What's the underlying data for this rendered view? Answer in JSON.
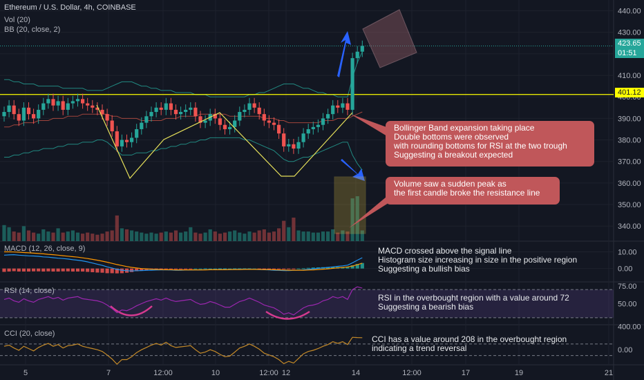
{
  "header": {
    "title": "Ethereum / U.S. Dollar, 4h, COINBASE",
    "vol_legend": "Vol (20)",
    "bb_legend": "BB (20, close, 2)",
    "macd_legend": "MACD (12, 26, close, 9)",
    "rsi_legend": "RSI (14, close)",
    "cci_legend": "CCI (20, close)"
  },
  "price_tags": {
    "current_price": "423.65",
    "countdown": "01:51",
    "resistance": "401.12"
  },
  "annotations": {
    "bb_note": [
      "Bollinger Band expansion taking place",
      "Double bottoms were observed",
      "with rounding bottoms for RSI at the two trough",
      "Suggesting a breakout expected"
    ],
    "vol_note": [
      "Volume saw a sudden peak as",
      "the first candle broke the resistance line"
    ],
    "macd_note": [
      "MACD crossed above the signal line",
      "Histogram size increasing in size in the positive region",
      "Suggesting a bullish bias"
    ],
    "rsi_note": [
      "RSI in the overbought region with a value around 72",
      "Suggesting a bearish bias"
    ],
    "cci_note": [
      "CCI has a value around 208 in the overbought region",
      "indicating a trend reversal"
    ]
  },
  "colors": {
    "background": "#131722",
    "up": "#26a69a",
    "down": "#ef5350",
    "resistance": "#ffff00",
    "bb_band": "#26a69a",
    "bb_basis": "#e05a47",
    "pattern": "#e6e05a",
    "arrow": "#2962ff",
    "macd": "#2196f3",
    "signal": "#ff9800",
    "rsi": "#9c27b0",
    "cci": "#c58a28",
    "note_bg": "#c0575a"
  },
  "chart_data": [
    {
      "type": "candlestick",
      "title": "Ethereum / U.S. Dollar, 4h, COINBASE",
      "x_ticks": [
        "5",
        "7",
        "12:00",
        "10",
        "12:00",
        "12",
        "14",
        "12:00",
        "17",
        "19",
        "21"
      ],
      "y_ticks": [
        "440.00",
        "430.00",
        "420.00",
        "410.00",
        "400.00",
        "390.00",
        "380.00",
        "370.00",
        "360.00",
        "350.00",
        "340.00"
      ],
      "ylim": [
        333,
        445
      ],
      "resistance": 401.12,
      "last_price": 423.65,
      "close": [
        393,
        396,
        392,
        389,
        395,
        392,
        390,
        394,
        397,
        399,
        396,
        398,
        394,
        397,
        398,
        399,
        397,
        396,
        395,
        394,
        392,
        389,
        384,
        377,
        380,
        379,
        381,
        385,
        388,
        391,
        393,
        395,
        394,
        397,
        394,
        392,
        393,
        394,
        395,
        391,
        388,
        389,
        392,
        390,
        387,
        385,
        386,
        389,
        393,
        394,
        397,
        395,
        392,
        389,
        388,
        387,
        383,
        377,
        378,
        376,
        379,
        383,
        385,
        386,
        387,
        390,
        392,
        396,
        395,
        397,
        394,
        418,
        421,
        423.65
      ],
      "volume": [
        15,
        13,
        9,
        8,
        14,
        10,
        8,
        7,
        11,
        9,
        8,
        12,
        8,
        9,
        10,
        8,
        7,
        8,
        7,
        6,
        7,
        9,
        10,
        24,
        12,
        11,
        10,
        9,
        8,
        7,
        8,
        7,
        8,
        9,
        8,
        10,
        8,
        9,
        13,
        8,
        7,
        8,
        11,
        9,
        7,
        8,
        9,
        10,
        8,
        7,
        9,
        8,
        10,
        11,
        8,
        9,
        12,
        19,
        13,
        22,
        10,
        9,
        9,
        8,
        8,
        9,
        9,
        11,
        8,
        10,
        9,
        40,
        42,
        10
      ],
      "bb_upper": [
        408,
        408,
        407,
        407,
        406,
        406,
        406,
        405,
        405,
        405,
        405,
        405,
        404,
        404,
        404,
        404,
        404,
        403,
        403,
        403,
        403,
        404,
        405,
        406,
        407,
        407,
        407,
        406,
        405,
        405,
        404,
        404,
        403,
        403,
        403,
        402,
        402,
        402,
        402,
        401,
        401,
        401,
        400,
        400,
        400,
        400,
        400,
        400,
        400,
        400,
        401,
        401,
        402,
        402,
        403,
        404,
        405,
        406,
        406,
        406,
        405,
        404,
        404,
        403,
        402,
        402,
        401,
        401,
        400,
        400,
        400,
        409,
        416,
        421
      ],
      "bb_basis": [
        386,
        386,
        387,
        387,
        388,
        388,
        388,
        389,
        389,
        389,
        390,
        390,
        390,
        391,
        391,
        391,
        392,
        392,
        392,
        392,
        392,
        392,
        391,
        391,
        390,
        390,
        390,
        390,
        389,
        389,
        389,
        389,
        389,
        390,
        390,
        390,
        391,
        391,
        391,
        391,
        392,
        392,
        392,
        392,
        392,
        392,
        391,
        391,
        391,
        391,
        391,
        391,
        391,
        390,
        390,
        390,
        389,
        389,
        388,
        388,
        388,
        388,
        388,
        388,
        388,
        389,
        389,
        389,
        390,
        390,
        390,
        391,
        392,
        393
      ],
      "bb_lower": [
        372,
        372,
        373,
        373,
        374,
        374,
        375,
        375,
        376,
        376,
        376,
        377,
        377,
        378,
        378,
        378,
        379,
        379,
        379,
        380,
        380,
        379,
        377,
        375,
        373,
        373,
        373,
        374,
        374,
        374,
        375,
        375,
        376,
        376,
        377,
        377,
        378,
        378,
        379,
        379,
        380,
        380,
        381,
        381,
        381,
        381,
        381,
        381,
        381,
        380,
        380,
        379,
        378,
        377,
        376,
        375,
        373,
        371,
        370,
        370,
        371,
        372,
        372,
        373,
        374,
        375,
        376,
        377,
        378,
        379,
        379,
        373,
        369,
        366
      ]
    },
    {
      "type": "line",
      "title": "MACD (12, 26, close, 9)",
      "y_ticks": [
        "10.00",
        "0.00"
      ],
      "ylim": [
        -8,
        16
      ],
      "series": [
        {
          "values": [
            8,
            8.2,
            8.3,
            8.0,
            7.8,
            7.6,
            7.5,
            7.3,
            7.0,
            6.8,
            6.5,
            6.2,
            6.0,
            5.7,
            5.3,
            5.0,
            4.6,
            4.0,
            3.3,
            2.6,
            1.9,
            1.0,
            0.3,
            -0.5,
            -1.0,
            -1.3,
            -1.4,
            -1.3,
            -1.2,
            -1.1,
            -1.0,
            -0.9,
            -0.8,
            -0.8,
            -0.9,
            -1.0,
            -1.0,
            -0.9,
            -0.9,
            -0.8,
            -0.8,
            -0.7,
            -0.7,
            -0.7,
            -0.6,
            -0.6,
            -0.6,
            -0.5,
            -0.5,
            -0.4,
            -0.4,
            -0.5,
            -0.6,
            -0.7,
            -0.8,
            -1.0,
            -1.1,
            -1.2,
            -1.2,
            -1.1,
            -1.0,
            -0.8,
            -0.5,
            -0.2,
            0.1,
            0.4,
            0.7,
            1.0,
            1.3,
            1.6,
            2.0,
            3.4,
            5.0,
            6.5
          ]
        },
        {
          "values": [
            10,
            10,
            9.9,
            9.8,
            9.6,
            9.4,
            9.2,
            9.0,
            8.8,
            8.5,
            8.3,
            8.0,
            7.7,
            7.4,
            7.1,
            6.8,
            6.4,
            6.0,
            5.5,
            5.0,
            4.4,
            3.8,
            3.1,
            2.4,
            1.8,
            1.2,
            0.7,
            0.3,
            0.0,
            -0.2,
            -0.4,
            -0.5,
            -0.6,
            -0.7,
            -0.7,
            -0.8,
            -0.8,
            -0.8,
            -0.8,
            -0.8,
            -0.8,
            -0.8,
            -0.7,
            -0.7,
            -0.7,
            -0.7,
            -0.6,
            -0.6,
            -0.6,
            -0.5,
            -0.5,
            -0.5,
            -0.5,
            -0.6,
            -0.6,
            -0.7,
            -0.8,
            -0.9,
            -1.0,
            -1.0,
            -1.0,
            -1.0,
            -0.9,
            -0.8,
            -0.6,
            -0.4,
            -0.2,
            0.1,
            0.4,
            0.7,
            1.0,
            1.5,
            2.3,
            3.2
          ]
        }
      ]
    },
    {
      "type": "line",
      "title": "RSI (14, close)",
      "y_ticks": [
        "75.00",
        "50.00"
      ],
      "ylim": [
        20,
        80
      ],
      "bands": [
        30,
        70
      ],
      "values": [
        56,
        58,
        54,
        52,
        57,
        54,
        52,
        56,
        58,
        60,
        57,
        59,
        55,
        58,
        59,
        60,
        57,
        56,
        55,
        54,
        52,
        48,
        43,
        37,
        41,
        40,
        43,
        47,
        50,
        53,
        55,
        57,
        55,
        58,
        55,
        53,
        54,
        55,
        56,
        52,
        49,
        50,
        53,
        51,
        48,
        45,
        45,
        49,
        53,
        55,
        58,
        55,
        52,
        48,
        46,
        44,
        40,
        35,
        37,
        34,
        39,
        44,
        47,
        48,
        50,
        54,
        56,
        60,
        58,
        60,
        56,
        70,
        74,
        72
      ]
    },
    {
      "type": "line",
      "title": "CCI (20, close)",
      "y_ticks": [
        "400.00",
        "0.00"
      ],
      "ylim": [
        -260,
        420
      ],
      "bands": [
        -100,
        100
      ],
      "values": [
        60,
        80,
        30,
        -10,
        60,
        20,
        -20,
        40,
        80,
        110,
        60,
        90,
        30,
        70,
        80,
        100,
        60,
        40,
        20,
        0,
        -30,
        -90,
        -160,
        -250,
        -170,
        -170,
        -120,
        -50,
        0,
        40,
        80,
        110,
        80,
        130,
        70,
        40,
        50,
        60,
        70,
        0,
        -60,
        -40,
        0,
        -30,
        -80,
        -120,
        -110,
        -40,
        30,
        60,
        100,
        60,
        10,
        -60,
        -90,
        -120,
        -170,
        -240,
        -200,
        -230,
        -150,
        -70,
        -30,
        -10,
        20,
        60,
        90,
        140,
        110,
        140,
        90,
        215,
        210,
        208
      ]
    }
  ]
}
